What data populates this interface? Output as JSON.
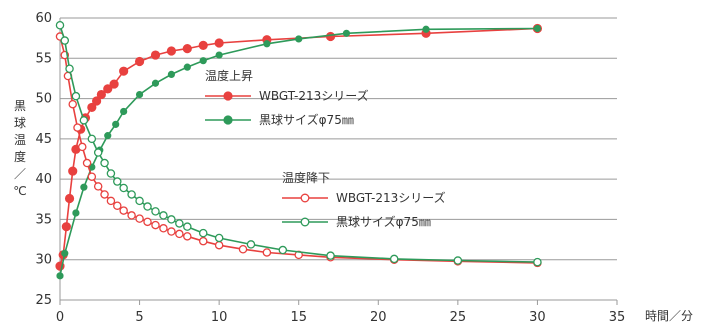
{
  "chart_data": {
    "type": "line",
    "title": "",
    "xlabel": "時間／分",
    "ylabel": "黒球温度／℃",
    "xlim": [
      0,
      35
    ],
    "ylim": [
      25,
      60
    ],
    "x_ticks": [
      "0",
      "5",
      "10",
      "15",
      "20",
      "25",
      "30",
      "35"
    ],
    "y_ticks": [
      "25",
      "30",
      "35",
      "40",
      "45",
      "50",
      "55",
      "60"
    ],
    "grid": "horizontal",
    "groups": [
      {
        "title": "温度上昇"
      },
      {
        "title": "温度降下"
      }
    ],
    "series": [
      {
        "name": "WBGT-213シリーズ",
        "group": 0,
        "color": "#e8413f",
        "marker": "filled",
        "x": [
          0,
          0.2,
          0.4,
          0.6,
          0.8,
          1.0,
          1.3,
          1.6,
          2.0,
          2.3,
          2.6,
          3.0,
          3.4,
          4.0,
          5.0,
          6.0,
          7.0,
          8.0,
          9.0,
          10.0,
          13.0,
          17.0,
          23.0,
          30.0
        ],
        "y": [
          29.2,
          30.6,
          34.1,
          37.6,
          41.0,
          43.7,
          46.2,
          47.6,
          48.9,
          49.7,
          50.5,
          51.2,
          51.8,
          53.4,
          54.6,
          55.4,
          55.9,
          56.2,
          56.6,
          56.9,
          57.3,
          57.7,
          58.1,
          58.7
        ]
      },
      {
        "name": "黒球サイズφ75㎜",
        "group": 0,
        "color": "#2e9a5a",
        "marker": "filled",
        "x": [
          0,
          0.3,
          1.0,
          1.5,
          2.0,
          2.5,
          3.0,
          3.5,
          4.0,
          5.0,
          6.0,
          7.0,
          8.0,
          9.0,
          10.0,
          13.0,
          15.0,
          18.0,
          23.0,
          30.0
        ],
        "y": [
          28.0,
          30.8,
          35.8,
          39.0,
          41.5,
          43.6,
          45.4,
          46.8,
          48.4,
          50.5,
          51.9,
          53.0,
          53.9,
          54.7,
          55.4,
          56.8,
          57.4,
          58.1,
          58.6,
          58.7
        ]
      },
      {
        "name": "WBGT-213シリーズ",
        "group": 1,
        "color": "#e8413f",
        "marker": "open",
        "x": [
          0,
          0.3,
          0.5,
          0.8,
          1.1,
          1.4,
          1.7,
          2.0,
          2.4,
          2.8,
          3.2,
          3.6,
          4.0,
          4.5,
          5.0,
          5.5,
          6.0,
          6.5,
          7.0,
          7.5,
          8.0,
          9.0,
          10.0,
          11.5,
          13.0,
          15.0,
          17.0,
          21.0,
          25.0,
          30.0
        ],
        "y": [
          57.7,
          55.4,
          52.8,
          49.3,
          46.4,
          44.0,
          42.0,
          40.3,
          39.1,
          38.1,
          37.3,
          36.7,
          36.1,
          35.5,
          35.1,
          34.7,
          34.3,
          33.9,
          33.5,
          33.2,
          32.9,
          32.3,
          31.8,
          31.3,
          30.9,
          30.6,
          30.3,
          30.0,
          29.8,
          29.6
        ]
      },
      {
        "name": "黒球サイズφ75㎜",
        "group": 1,
        "color": "#2e9a5a",
        "marker": "open",
        "x": [
          0,
          0.3,
          0.6,
          1.0,
          1.5,
          2.0,
          2.4,
          2.8,
          3.2,
          3.6,
          4.0,
          4.5,
          5.0,
          5.5,
          6.0,
          6.5,
          7.0,
          7.5,
          8.0,
          9.0,
          10.0,
          12.0,
          14.0,
          17.0,
          21.0,
          25.0,
          30.0
        ],
        "y": [
          59.1,
          57.2,
          53.7,
          50.3,
          47.3,
          45.0,
          43.3,
          42.0,
          40.7,
          39.7,
          38.9,
          38.1,
          37.3,
          36.6,
          36.0,
          35.5,
          35.0,
          34.5,
          34.1,
          33.3,
          32.7,
          31.9,
          31.2,
          30.5,
          30.1,
          29.9,
          29.7
        ]
      }
    ]
  }
}
